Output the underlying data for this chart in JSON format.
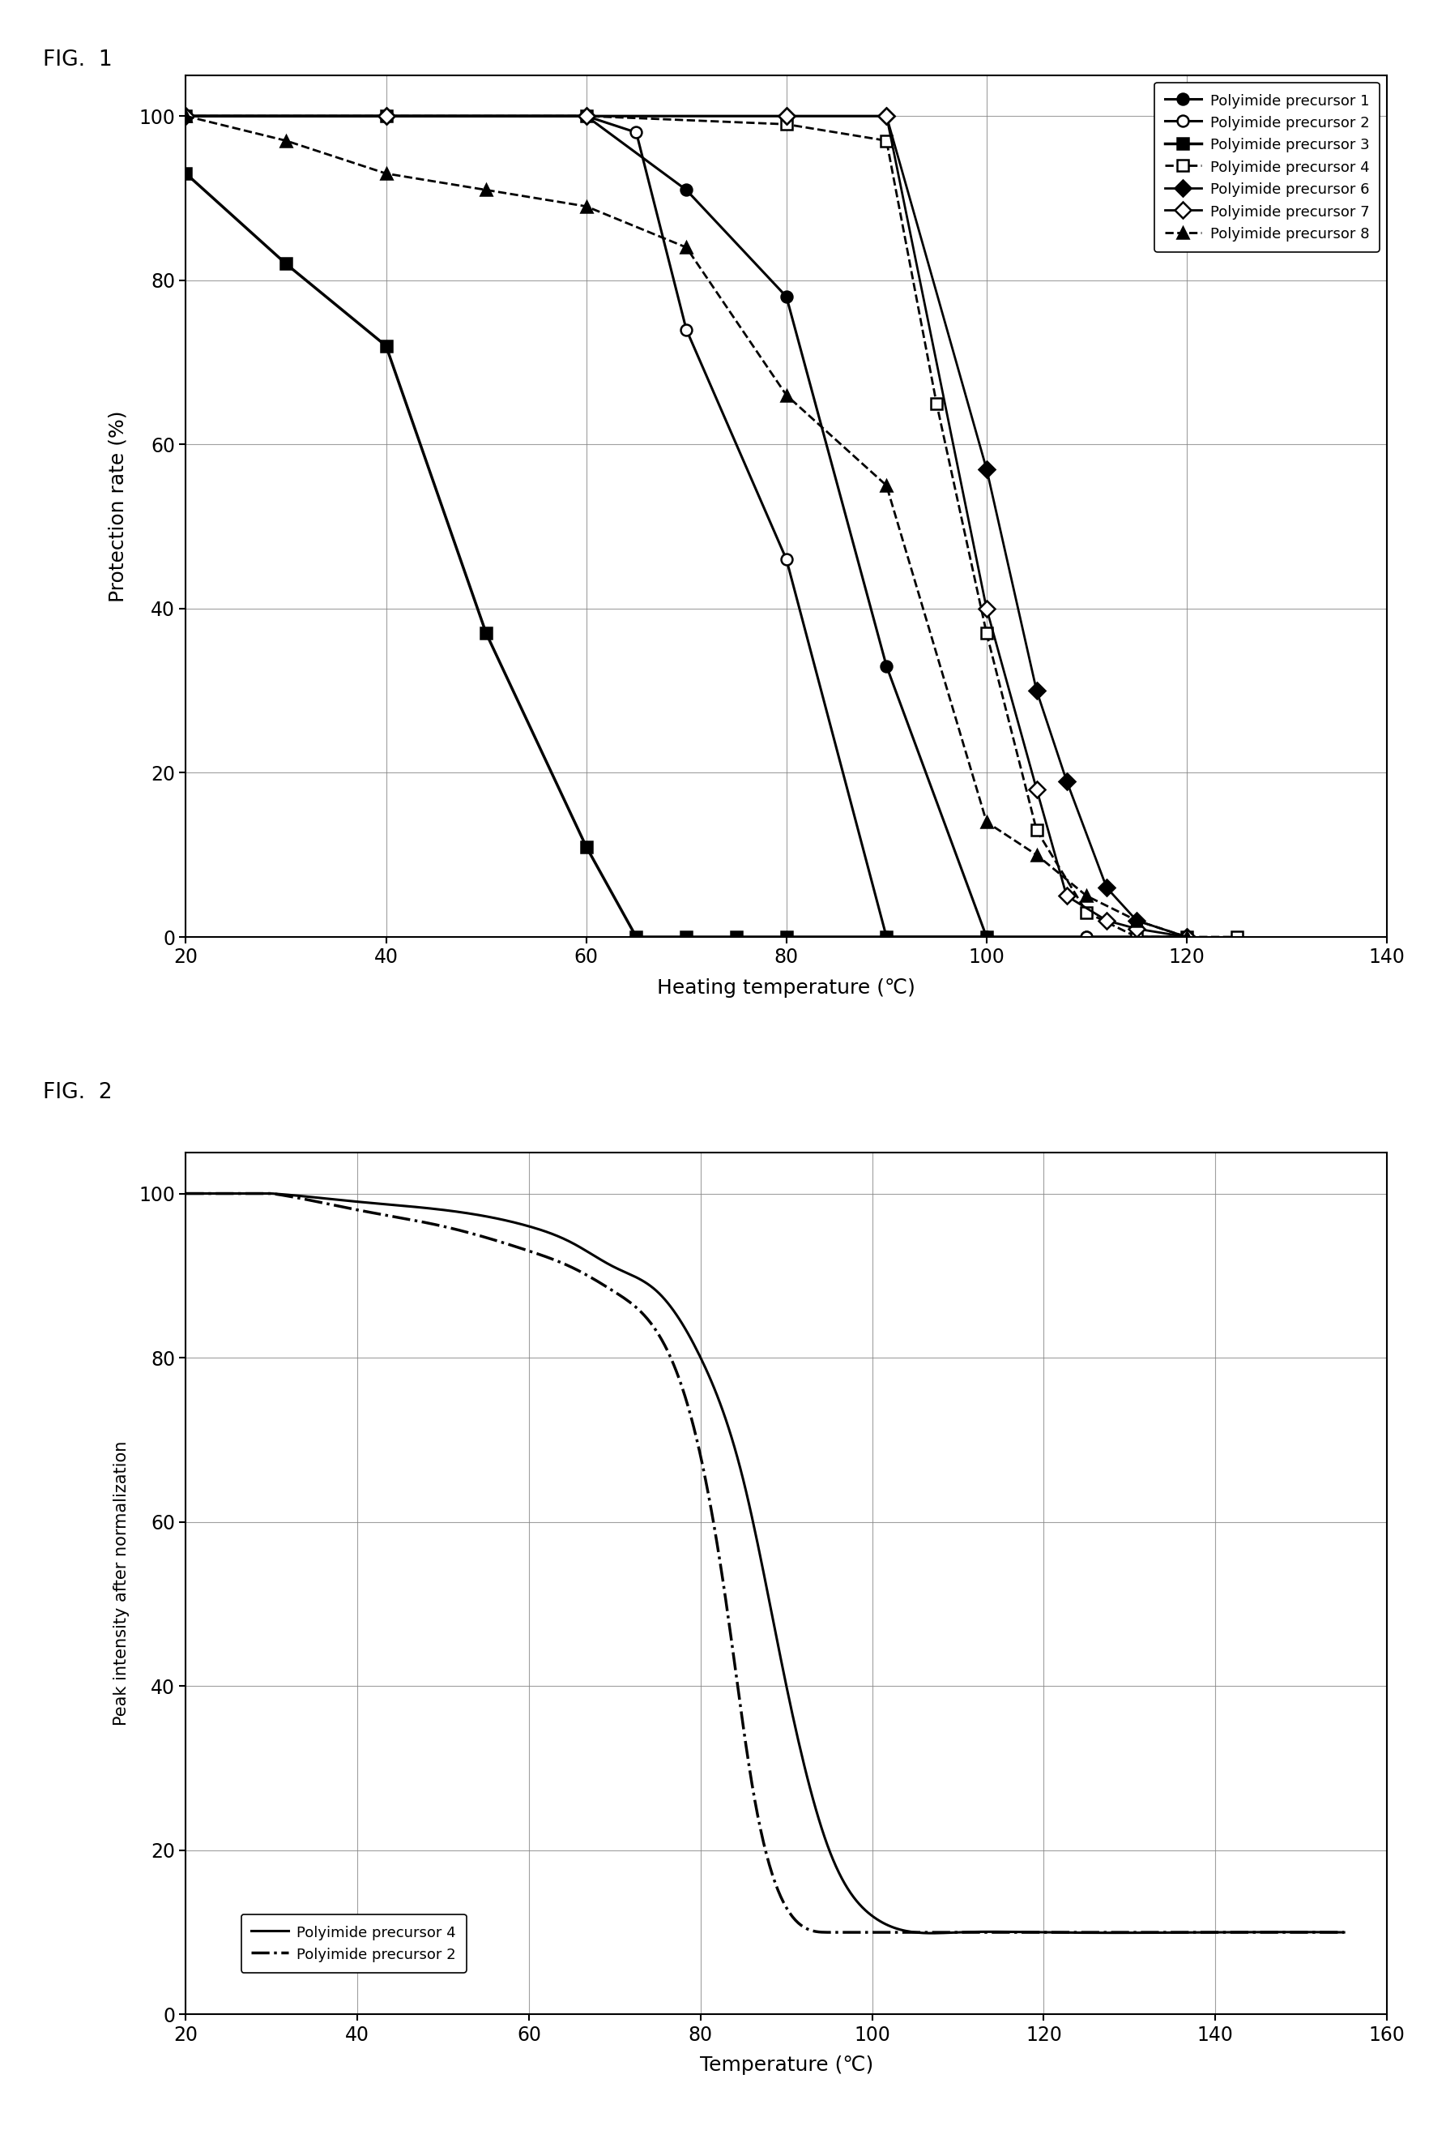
{
  "fig1_title": "FIG.  1",
  "fig2_title": "FIG.  2",
  "fig1_xlabel": "Heating temperature (℃)",
  "fig1_ylabel": "Protection rate (%)",
  "fig2_xlabel": "Temperature (℃)",
  "fig2_ylabel": "Peak intensity after normalization",
  "fig1_xlim": [
    20,
    140
  ],
  "fig1_ylim": [
    0,
    105
  ],
  "fig1_xticks": [
    20,
    40,
    60,
    80,
    100,
    120,
    140
  ],
  "fig1_yticks": [
    0,
    20,
    40,
    60,
    80,
    100
  ],
  "fig2_xlim": [
    20,
    160
  ],
  "fig2_ylim": [
    0,
    105
  ],
  "fig2_xticks": [
    20,
    40,
    60,
    80,
    100,
    120,
    140,
    160
  ],
  "fig2_yticks": [
    0,
    20,
    40,
    60,
    80,
    100
  ],
  "series1": {
    "label": "Polyimide precursor 1",
    "x": [
      20,
      40,
      60,
      70,
      80,
      90,
      100,
      110,
      120
    ],
    "y": [
      100,
      100,
      100,
      91,
      78,
      33,
      0,
      0,
      0
    ],
    "color": "#000000",
    "marker": "o",
    "fillstyle": "full",
    "linestyle": "-",
    "linewidth": 2.2
  },
  "series2": {
    "label": "Polyimide precursor 2",
    "x": [
      20,
      40,
      60,
      65,
      70,
      80,
      90,
      100,
      110,
      120
    ],
    "y": [
      100,
      100,
      100,
      98,
      74,
      46,
      0,
      0,
      0,
      0
    ],
    "color": "#000000",
    "marker": "o",
    "fillstyle": "none",
    "linestyle": "-",
    "linewidth": 2.2
  },
  "series3": {
    "label": "Polyimide precursor 3",
    "x": [
      20,
      30,
      40,
      50,
      60,
      65,
      70,
      75,
      80,
      90,
      100
    ],
    "y": [
      93,
      82,
      72,
      37,
      11,
      0,
      0,
      0,
      0,
      0,
      0
    ],
    "color": "#000000",
    "marker": "s",
    "fillstyle": "full",
    "linestyle": "-",
    "linewidth": 2.5
  },
  "series4": {
    "label": "Polyimide precursor 4",
    "x": [
      20,
      40,
      60,
      80,
      90,
      95,
      100,
      105,
      110,
      115,
      120,
      125
    ],
    "y": [
      100,
      100,
      100,
      99,
      97,
      65,
      37,
      13,
      3,
      0,
      0,
      0
    ],
    "color": "#000000",
    "marker": "s",
    "fillstyle": "none",
    "linestyle": "--",
    "linewidth": 2.0
  },
  "series6": {
    "label": "Polyimide precursor 6",
    "x": [
      20,
      40,
      60,
      80,
      90,
      100,
      105,
      108,
      112,
      115,
      120
    ],
    "y": [
      100,
      100,
      100,
      100,
      100,
      57,
      30,
      19,
      6,
      2,
      0
    ],
    "color": "#000000",
    "marker": "D",
    "fillstyle": "full",
    "linestyle": "-",
    "linewidth": 2.0
  },
  "series7": {
    "label": "Polyimide precursor 7",
    "x": [
      20,
      40,
      60,
      80,
      90,
      100,
      105,
      108,
      112,
      115,
      120
    ],
    "y": [
      100,
      100,
      100,
      100,
      100,
      40,
      18,
      5,
      2,
      1,
      0
    ],
    "color": "#000000",
    "marker": "D",
    "fillstyle": "none",
    "linestyle": "-",
    "linewidth": 2.0
  },
  "series8": {
    "label": "Polyimide precursor 8",
    "x": [
      20,
      30,
      40,
      50,
      60,
      70,
      80,
      90,
      100,
      105,
      110,
      115,
      120
    ],
    "y": [
      100,
      97,
      93,
      91,
      89,
      84,
      66,
      55,
      14,
      10,
      5,
      2,
      0
    ],
    "color": "#000000",
    "marker": "^",
    "fillstyle": "full",
    "linestyle": "--",
    "linewidth": 2.0
  },
  "fig2_series4": {
    "label": "Polyimide precursor 4",
    "x": [
      20,
      30,
      40,
      50,
      60,
      65,
      70,
      75,
      80,
      85,
      90,
      95,
      100,
      105,
      110,
      120,
      140,
      155
    ],
    "y": [
      100,
      100,
      99,
      98,
      96,
      94,
      91,
      88,
      80,
      65,
      40,
      20,
      12,
      10,
      10,
      10,
      10,
      10
    ],
    "color": "#000000",
    "linestyle": "-",
    "linewidth": 2.2
  },
  "fig2_series2": {
    "label": "Polyimide precursor 2",
    "x": [
      20,
      30,
      40,
      50,
      60,
      65,
      70,
      75,
      80,
      83,
      86,
      90,
      95,
      100,
      105,
      120,
      140,
      155
    ],
    "y": [
      100,
      100,
      98,
      96,
      93,
      91,
      88,
      83,
      68,
      50,
      28,
      13,
      10,
      10,
      10,
      10,
      10,
      10
    ],
    "color": "#000000",
    "linestyle": "-",
    "linewidth": 2.5,
    "dot_dash": true
  }
}
